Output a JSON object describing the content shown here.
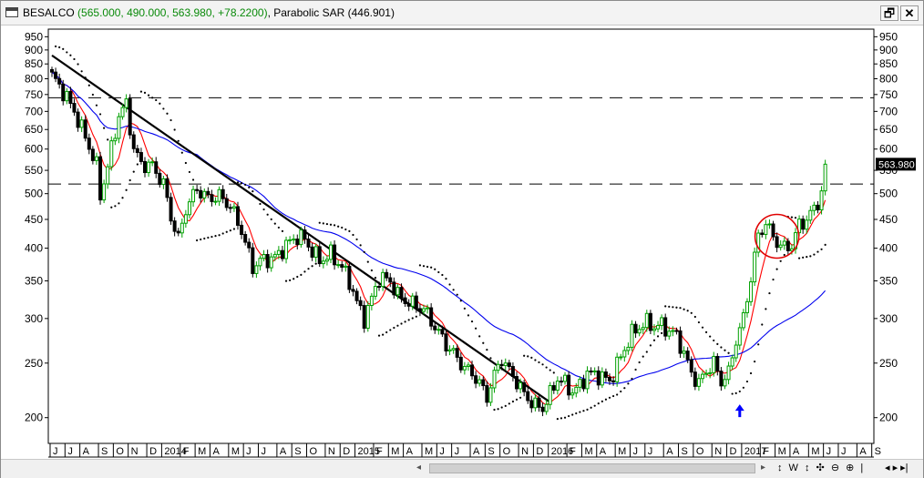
{
  "window": {
    "symbol": "BESALCO",
    "ohlc_text": "(565.000, 490.000, 563.980, +78.2200)",
    "indicator_text": ", Parabolic SAR (446.901)",
    "restore_glyph": "🗗",
    "close_glyph": "✕"
  },
  "bottom_bar": {
    "nav_strip": "↕ W ↕ ✣ ⊖ ⊕ |",
    "nav_arrows": "◂ ▸ ▸|",
    "scroll_left": "◂",
    "scroll_right": "▸"
  },
  "chart_data": {
    "type": "candlestick",
    "scale": "log",
    "ylim": [
      180,
      980
    ],
    "y_ticks": [
      200,
      250,
      300,
      350,
      400,
      450,
      500,
      550,
      600,
      650,
      700,
      750,
      800,
      850,
      900,
      950
    ],
    "last_price": 563.98,
    "last_price_label": "563.980",
    "x_labels": [
      {
        "label": "J",
        "week": 0
      },
      {
        "label": "J",
        "week": 4
      },
      {
        "label": "A",
        "week": 8
      },
      {
        "label": "S",
        "week": 13
      },
      {
        "label": "O",
        "week": 17
      },
      {
        "label": "N",
        "week": 21
      },
      {
        "label": "D",
        "week": 26
      },
      {
        "label": "2014",
        "week": 30
      },
      {
        "label": "F",
        "week": 35
      },
      {
        "label": "M",
        "week": 39
      },
      {
        "label": "A",
        "week": 43
      },
      {
        "label": "M",
        "week": 48
      },
      {
        "label": "J",
        "week": 52
      },
      {
        "label": "J",
        "week": 56
      },
      {
        "label": "A",
        "week": 61
      },
      {
        "label": "S",
        "week": 65
      },
      {
        "label": "O",
        "week": 69
      },
      {
        "label": "N",
        "week": 74
      },
      {
        "label": "D",
        "week": 78
      },
      {
        "label": "2015",
        "week": 82
      },
      {
        "label": "F",
        "week": 87
      },
      {
        "label": "M",
        "week": 91
      },
      {
        "label": "A",
        "week": 95
      },
      {
        "label": "M",
        "week": 100
      },
      {
        "label": "J",
        "week": 104
      },
      {
        "label": "J",
        "week": 108
      },
      {
        "label": "A",
        "week": 113
      },
      {
        "label": "S",
        "week": 117
      },
      {
        "label": "O",
        "week": 121
      },
      {
        "label": "N",
        "week": 126
      },
      {
        "label": "D",
        "week": 130
      },
      {
        "label": "2016",
        "week": 134
      },
      {
        "label": "F",
        "week": 139
      },
      {
        "label": "M",
        "week": 143
      },
      {
        "label": "A",
        "week": 147
      },
      {
        "label": "M",
        "week": 152
      },
      {
        "label": "J",
        "week": 156
      },
      {
        "label": "J",
        "week": 160
      },
      {
        "label": "A",
        "week": 165
      },
      {
        "label": "S",
        "week": 169
      },
      {
        "label": "O",
        "week": 173
      },
      {
        "label": "N",
        "week": 178
      },
      {
        "label": "D",
        "week": 182
      },
      {
        "label": "2017",
        "week": 186
      },
      {
        "label": "F",
        "week": 191
      },
      {
        "label": "M",
        "week": 195
      },
      {
        "label": "A",
        "week": 199
      },
      {
        "label": "M",
        "week": 204
      },
      {
        "label": "J",
        "week": 208
      },
      {
        "label": "J",
        "week": 212
      },
      {
        "label": "A",
        "week": 217
      },
      {
        "label": "S",
        "week": 221
      }
    ],
    "horizontal_levels": [
      740,
      520
    ],
    "trendline": {
      "from": {
        "week": 0,
        "price": 880
      },
      "to": {
        "week": 134,
        "price": 213
      }
    },
    "close_anchors": [
      [
        0,
        810
      ],
      [
        3,
        760
      ],
      [
        6,
        700
      ],
      [
        9,
        630
      ],
      [
        12,
        560
      ],
      [
        13,
        495
      ],
      [
        15,
        560
      ],
      [
        18,
        690
      ],
      [
        20,
        720
      ],
      [
        22,
        600
      ],
      [
        24,
        565
      ],
      [
        27,
        560
      ],
      [
        30,
        520
      ],
      [
        32,
        455
      ],
      [
        34,
        415
      ],
      [
        36,
        470
      ],
      [
        39,
        510
      ],
      [
        42,
        490
      ],
      [
        45,
        495
      ],
      [
        48,
        475
      ],
      [
        51,
        430
      ],
      [
        54,
        370
      ],
      [
        56,
        380
      ],
      [
        60,
        385
      ],
      [
        63,
        405
      ],
      [
        66,
        420
      ],
      [
        68,
        415
      ],
      [
        70,
        395
      ],
      [
        72,
        380
      ],
      [
        75,
        390
      ],
      [
        78,
        370
      ],
      [
        80,
        350
      ],
      [
        82,
        320
      ],
      [
        84,
        300
      ],
      [
        86,
        325
      ],
      [
        88,
        355
      ],
      [
        91,
        350
      ],
      [
        93,
        330
      ],
      [
        96,
        320
      ],
      [
        100,
        312
      ],
      [
        103,
        290
      ],
      [
        106,
        270
      ],
      [
        109,
        255
      ],
      [
        111,
        245
      ],
      [
        113,
        240
      ],
      [
        115,
        230
      ],
      [
        117,
        218
      ],
      [
        119,
        238
      ],
      [
        121,
        255
      ],
      [
        123,
        242
      ],
      [
        125,
        232
      ],
      [
        127,
        220
      ],
      [
        130,
        210
      ],
      [
        132,
        208
      ],
      [
        134,
        220
      ],
      [
        136,
        235
      ],
      [
        138,
        230
      ],
      [
        140,
        222
      ],
      [
        142,
        228
      ],
      [
        144,
        240
      ],
      [
        147,
        238
      ],
      [
        150,
        232
      ],
      [
        152,
        248
      ],
      [
        154,
        265
      ],
      [
        156,
        282
      ],
      [
        158,
        290
      ],
      [
        160,
        295
      ],
      [
        162,
        290
      ],
      [
        164,
        292
      ],
      [
        166,
        285
      ],
      [
        168,
        280
      ],
      [
        170,
        260
      ],
      [
        172,
        240
      ],
      [
        174,
        230
      ],
      [
        176,
        242
      ],
      [
        178,
        250
      ],
      [
        180,
        232
      ],
      [
        182,
        240
      ],
      [
        184,
        275
      ],
      [
        186,
        300
      ],
      [
        188,
        355
      ],
      [
        190,
        420
      ],
      [
        192,
        445
      ],
      [
        193,
        430
      ],
      [
        195,
        410
      ],
      [
        197,
        400
      ],
      [
        199,
        405
      ],
      [
        201,
        440
      ],
      [
        203,
        450
      ],
      [
        205,
        470
      ],
      [
        207,
        500
      ],
      [
        208,
        564
      ]
    ],
    "series": [
      {
        "key": "ma_fast",
        "color": "#ff0000",
        "window": 6
      },
      {
        "key": "ma_slow",
        "color": "#0000ee",
        "window": 40
      },
      {
        "key": "sar",
        "color": "#000000"
      }
    ],
    "up_color": "#00a000",
    "down_color": "#000000",
    "annotations": [
      {
        "type": "circle",
        "week": 195,
        "price": 420,
        "color": "#e00000"
      },
      {
        "type": "arrow-up",
        "week": 185,
        "price": 205,
        "color": "#0000ff"
      }
    ]
  }
}
